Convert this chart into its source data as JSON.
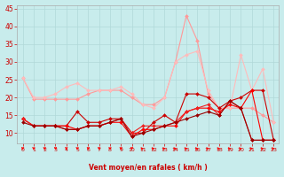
{
  "background_color": "#c8ecec",
  "grid_color": "#b0d8d8",
  "xlabel": "Vent moyen/en rafales ( km/h )",
  "xlim": [
    -0.5,
    23.5
  ],
  "ylim": [
    7,
    46
  ],
  "yticks": [
    10,
    15,
    20,
    25,
    30,
    35,
    40,
    45
  ],
  "ytick_labels": [
    "10",
    "15",
    "20",
    "25",
    "30",
    "35",
    "40",
    "45"
  ],
  "xticks": [
    0,
    1,
    2,
    3,
    4,
    5,
    6,
    7,
    8,
    9,
    10,
    11,
    12,
    13,
    14,
    15,
    16,
    17,
    18,
    19,
    20,
    21,
    22,
    23
  ],
  "series": [
    {
      "x": [
        0,
        1,
        2,
        3,
        4,
        5,
        6,
        7,
        8,
        9,
        10,
        11,
        12,
        13,
        14,
        15,
        16,
        17,
        18,
        19,
        20,
        21,
        22,
        23
      ],
      "y": [
        25.5,
        19.5,
        19.5,
        19.5,
        19.5,
        19.5,
        21,
        22,
        22,
        22,
        20,
        18,
        18,
        20,
        30,
        43,
        36,
        21,
        17,
        17,
        17,
        17,
        15,
        13
      ],
      "color": "#ff9999",
      "linewidth": 0.8,
      "marker": "D",
      "markersize": 2.0
    },
    {
      "x": [
        0,
        1,
        2,
        3,
        4,
        5,
        6,
        7,
        8,
        9,
        10,
        11,
        12,
        13,
        14,
        15,
        16,
        17,
        18,
        19,
        20,
        21,
        22,
        23
      ],
      "y": [
        25.5,
        20,
        20,
        21,
        23,
        24,
        22,
        22,
        22,
        23,
        21,
        18,
        17,
        20,
        30,
        32,
        33,
        22,
        17,
        17,
        32,
        22,
        28,
        13
      ],
      "color": "#ffbbbb",
      "linewidth": 0.8,
      "marker": "D",
      "markersize": 2.0
    },
    {
      "x": [
        0,
        1,
        2,
        3,
        4,
        5,
        6,
        7,
        8,
        9,
        10,
        11,
        12,
        13,
        14,
        15,
        16,
        17,
        18,
        19,
        20,
        21,
        22,
        23
      ],
      "y": [
        14,
        12,
        12,
        12,
        12,
        16,
        13,
        13,
        14,
        14,
        10,
        10,
        13,
        15,
        13,
        21,
        21,
        20,
        17,
        19,
        20,
        22,
        22,
        8
      ],
      "color": "#cc0000",
      "linewidth": 0.8,
      "marker": "D",
      "markersize": 2.0
    },
    {
      "x": [
        0,
        1,
        2,
        3,
        4,
        5,
        6,
        7,
        8,
        9,
        10,
        11,
        12,
        13,
        14,
        15,
        16,
        17,
        18,
        19,
        20,
        21,
        22,
        23
      ],
      "y": [
        14,
        12,
        12,
        12,
        12,
        11,
        12,
        12,
        13,
        13,
        9,
        11,
        11,
        12,
        12,
        16,
        17,
        17,
        16,
        18,
        17,
        22,
        8,
        8
      ],
      "color": "#ff0000",
      "linewidth": 0.8,
      "marker": "D",
      "markersize": 2.0
    },
    {
      "x": [
        0,
        1,
        2,
        3,
        4,
        5,
        6,
        7,
        8,
        9,
        10,
        11,
        12,
        13,
        14,
        15,
        16,
        17,
        18,
        19,
        20,
        21,
        22,
        23
      ],
      "y": [
        14,
        12,
        12,
        12,
        11,
        11,
        12,
        12,
        13,
        14,
        10,
        12,
        12,
        12,
        13,
        16,
        17,
        18,
        15,
        19,
        17,
        8,
        8,
        8
      ],
      "color": "#ee2222",
      "linewidth": 0.8,
      "marker": "D",
      "markersize": 2.0
    },
    {
      "x": [
        0,
        1,
        2,
        3,
        4,
        5,
        6,
        7,
        8,
        9,
        10,
        11,
        12,
        13,
        14,
        15,
        16,
        17,
        18,
        19,
        20,
        21,
        22,
        23
      ],
      "y": [
        13,
        12,
        12,
        12,
        11,
        11,
        12,
        12,
        13,
        14,
        9,
        10,
        11,
        12,
        13,
        14,
        15,
        16,
        15,
        19,
        17,
        8,
        8,
        8
      ],
      "color": "#990000",
      "linewidth": 0.8,
      "marker": "D",
      "markersize": 2.0
    }
  ],
  "wind_arrows_down": [
    0,
    1,
    2,
    3,
    4,
    5,
    6,
    7,
    8,
    9,
    10
  ],
  "wind_arrows_right": [
    11,
    12,
    13,
    14,
    15,
    16,
    17,
    18,
    19,
    20,
    21,
    22,
    23
  ],
  "arrow_color": "#ff0000",
  "xlabel_color": "#cc0000",
  "tick_color": "#cc0000",
  "spine_color": "#aaaaaa"
}
